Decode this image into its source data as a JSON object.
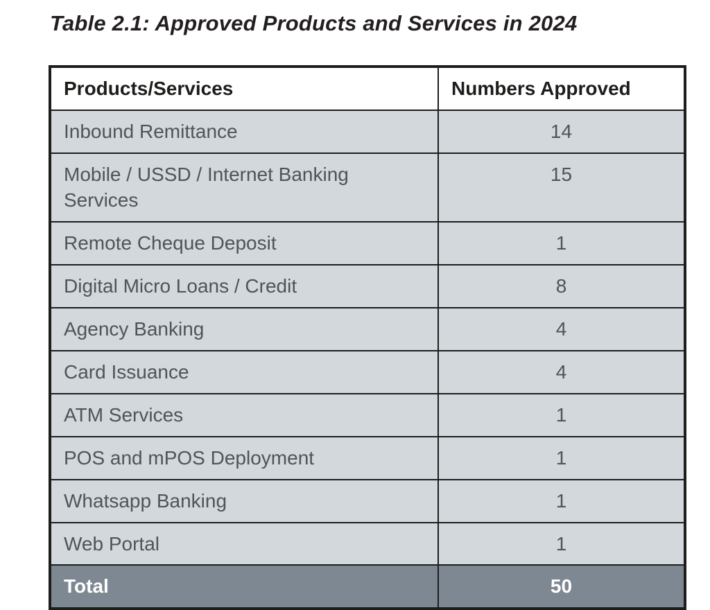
{
  "page": {
    "title": "Table 2.1: Approved Products and Services in 2024"
  },
  "table": {
    "headers": {
      "products": "Products/Services",
      "numbers": "Numbers Approved"
    },
    "rows": [
      {
        "label": "Inbound Remittance",
        "value": "14"
      },
      {
        "label": "Mobile / USSD / Internet Banking Services",
        "value": "15"
      },
      {
        "label": "Remote Cheque Deposit",
        "value": "1"
      },
      {
        "label": "Digital Micro Loans / Credit",
        "value": "8"
      },
      {
        "label": "Agency Banking",
        "value": "4"
      },
      {
        "label": "Card Issuance",
        "value": "4"
      },
      {
        "label": "ATM Services",
        "value": "1"
      },
      {
        "label": "POS and mPOS Deployment",
        "value": "1"
      },
      {
        "label": "Whatsapp Banking",
        "value": "1"
      },
      {
        "label": "Web Portal",
        "value": "1"
      }
    ],
    "total": {
      "label": "Total",
      "value": "50"
    }
  },
  "colors": {
    "row_background": "#d2d8dc",
    "total_background": "#7d8892",
    "border": "#1d1d1b",
    "header_text": "#1d1d1b",
    "row_text": "#4e5458",
    "total_text": "#ffffff"
  }
}
